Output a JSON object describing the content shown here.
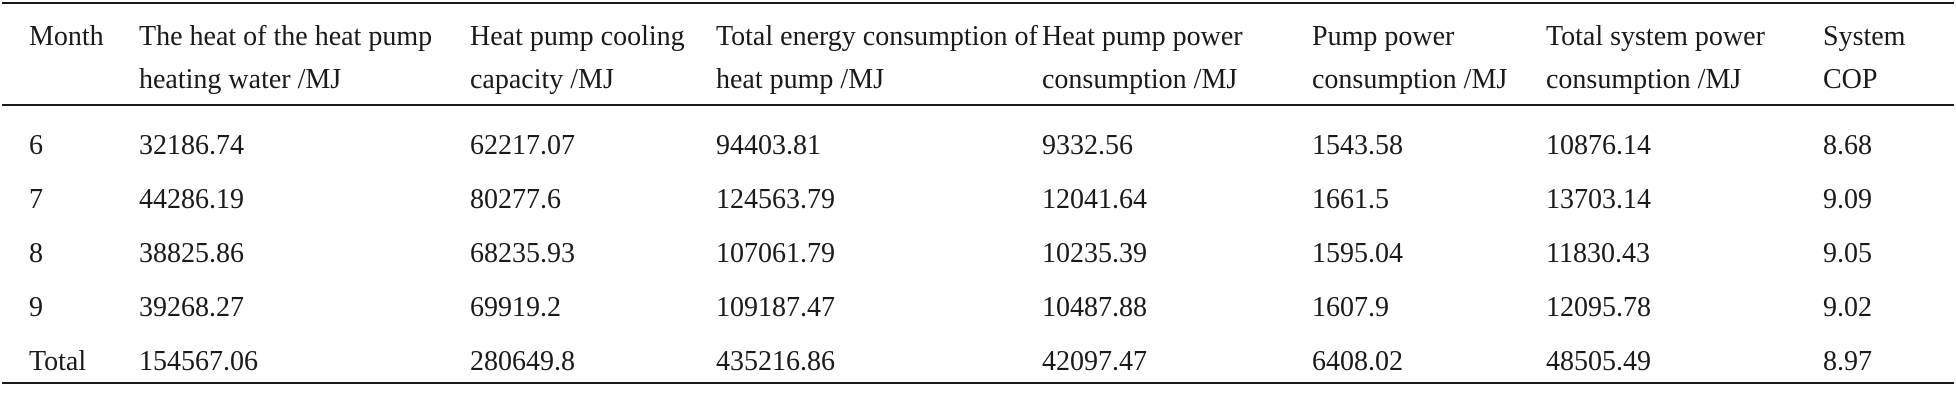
{
  "table": {
    "headers": [
      "Month",
      "The heat of the heat pump heating water /MJ",
      "Heat pump cooling capacity /MJ",
      "Total energy consumption of heat pump /MJ",
      "Heat pump power consumption /MJ",
      "Pump power consumption /MJ",
      "Total system power consumption /MJ",
      "System COP"
    ],
    "rows": [
      [
        "6",
        "32186.74",
        "62217.07",
        "94403.81",
        "9332.56",
        "1543.58",
        "10876.14",
        "8.68"
      ],
      [
        "7",
        "44286.19",
        "80277.6",
        "124563.79",
        "12041.64",
        "1661.5",
        "13703.14",
        "9.09"
      ],
      [
        "8",
        "38825.86",
        "68235.93",
        "107061.79",
        "10235.39",
        "1595.04",
        "11830.43",
        "9.05"
      ],
      [
        "9",
        "39268.27",
        "69919.2",
        "109187.47",
        "10487.88",
        "1607.9",
        "12095.78",
        "9.02"
      ],
      [
        "Total",
        "154567.06",
        "280649.8",
        "435216.86",
        "42097.47",
        "6408.02",
        "48505.49",
        "8.97"
      ]
    ]
  }
}
